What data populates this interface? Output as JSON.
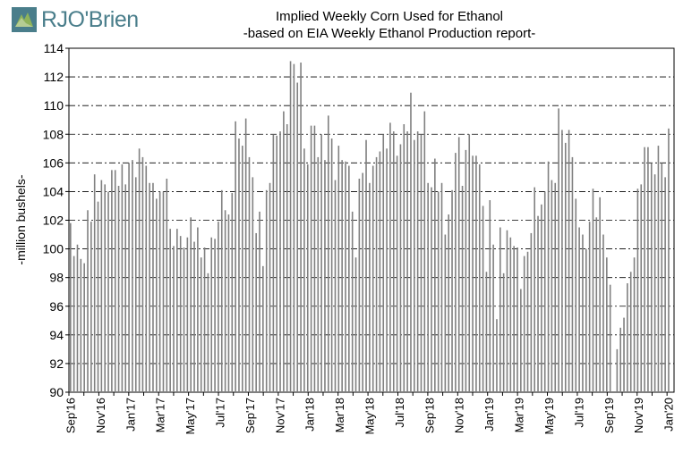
{
  "logo": {
    "brand": "RJO'Brien",
    "icon": "rjo-obrien-logo-icon",
    "color": "#4a7e8b"
  },
  "title": "Implied  Weekly Corn Used for Ethanol",
  "subtitle": "-based on EIA Weekly Ethanol Production report-",
  "chart_data": {
    "type": "bar",
    "ylabel": "-million bushels-",
    "ylim": [
      90,
      114
    ],
    "yticks": [
      90,
      92,
      94,
      96,
      98,
      100,
      102,
      104,
      106,
      108,
      110,
      112,
      114
    ],
    "xtick_labels": [
      "Sep'16",
      "Nov'16",
      "Jan'17",
      "Mar'17",
      "May'17",
      "Jul'17",
      "Sep'17",
      "Nov'17",
      "Jan'18",
      "Mar'18",
      "May'18",
      "Jul'18",
      "Sep'18",
      "Nov'18",
      "Jan'19",
      "Mar'19",
      "May'19",
      "Jul'19",
      "Sep'19",
      "Nov'19",
      "Jan'20"
    ],
    "grid": "horizontal dash-dot",
    "bar_color": "#808080",
    "values": [
      101.8,
      99.5,
      100.3,
      99.3,
      99.0,
      102.7,
      101.9,
      105.2,
      103.3,
      104.8,
      104.5,
      104.0,
      105.5,
      105.5,
      104.4,
      105.9,
      104.5,
      106.0,
      106.2,
      105.0,
      107.0,
      106.4,
      105.8,
      104.6,
      104.6,
      103.5,
      104.0,
      104.0,
      104.9,
      101.4,
      100.2,
      101.4,
      100.9,
      100.1,
      100.8,
      102.2,
      100.5,
      101.5,
      99.4,
      100.1,
      98.3,
      100.8,
      100.7,
      101.9,
      104.1,
      102.7,
      102.4,
      103.9,
      108.9,
      107.7,
      107.2,
      109.1,
      106.4,
      105.0,
      101.1,
      102.6,
      98.8,
      104.1,
      104.6,
      108.0,
      107.9,
      108.2,
      109.6,
      108.7,
      113.1,
      112.9,
      111.6,
      113.0,
      107.0,
      105.9,
      108.6,
      108.6,
      106.4,
      108.0,
      106.2,
      109.3,
      107.7,
      104.8,
      107.2,
      106.2,
      106.1,
      105.8,
      102.6,
      99.4,
      104.9,
      105.3,
      107.6,
      104.6,
      105.8,
      106.4,
      106.8,
      108.0,
      107.0,
      108.8,
      108.2,
      106.5,
      107.3,
      108.7,
      108.2,
      110.9,
      107.6,
      108.2,
      108.0,
      109.6,
      104.6,
      104.3,
      106.3,
      104.0,
      104.6,
      101.0,
      102.4,
      104.1,
      106.7,
      107.8,
      104.4,
      106.9,
      108.0,
      106.5,
      106.5,
      105.9,
      103.0,
      98.4,
      103.4,
      100.3,
      95.1,
      101.5,
      98.3,
      101.3,
      100.8,
      100.2,
      100.1,
      97.2,
      99.5,
      99.8,
      101.1,
      104.3,
      102.3,
      103.1,
      104.0,
      106.1,
      104.8,
      104.6,
      109.8,
      108.3,
      107.4,
      108.3,
      106.4,
      103.5,
      101.5,
      101.0,
      100.0,
      101.9,
      104.2,
      102.2,
      103.6,
      101.0,
      99.4,
      97.5,
      90.0,
      93.0,
      94.5,
      95.2,
      97.6,
      98.4,
      99.4,
      104.2,
      104.5,
      107.1,
      107.1,
      106.0,
      105.2,
      107.2,
      106.0,
      105.0,
      108.4
    ]
  }
}
